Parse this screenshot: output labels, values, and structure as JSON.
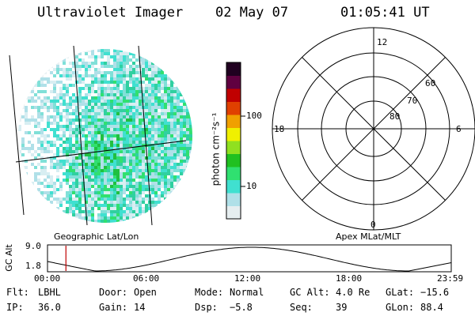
{
  "header": {
    "instrument": "Ultraviolet Imager",
    "date": "02 May 07",
    "time": "01:05:41 UT"
  },
  "colorbar": {
    "label": "photon cm⁻²s⁻¹",
    "ticks": [
      "100",
      "10"
    ]
  },
  "polar_plot": {
    "mlt_labels": {
      "top": "12",
      "left": "18",
      "right": "6",
      "bottom": "0"
    },
    "lat_labels": [
      "60",
      "70",
      "80"
    ]
  },
  "map_labels": {
    "left": "Geographic Lat/Lon",
    "right": "Apex MLat/MLT"
  },
  "altitude_plot": {
    "ylabel": "GC Alt",
    "yticks": [
      "9.0",
      "1.8"
    ],
    "xticks": [
      "00:00",
      "06:00",
      "12:00",
      "18:00",
      "23:59"
    ],
    "current_time_marker_hours": 1.095
  },
  "info": {
    "row1": [
      {
        "key": "Flt:",
        "value": "LBHL"
      },
      {
        "key": "Door:",
        "value": "Open"
      },
      {
        "key": "Mode:",
        "value": "Normal"
      },
      {
        "key": "GC Alt:",
        "value": "4.0 Re"
      },
      {
        "key": "GLat:",
        "value": "−15.6"
      }
    ],
    "row2": [
      {
        "key": "IP:",
        "value": "36.0"
      },
      {
        "key": "Gain:",
        "value": "14"
      },
      {
        "key": "Dsp:",
        "value": "−5.8"
      },
      {
        "key": "Seq:",
        "value": "39"
      },
      {
        "key": "GLon:",
        "value": "88.4"
      }
    ]
  },
  "colors": {
    "palette": [
      "#e6eef0",
      "#b0e0e8",
      "#40e0d0",
      "#30e070",
      "#20c020",
      "#90e020",
      "#f0f000",
      "#f0a000",
      "#e04000",
      "#c00000",
      "#600040",
      "#200020"
    ]
  }
}
